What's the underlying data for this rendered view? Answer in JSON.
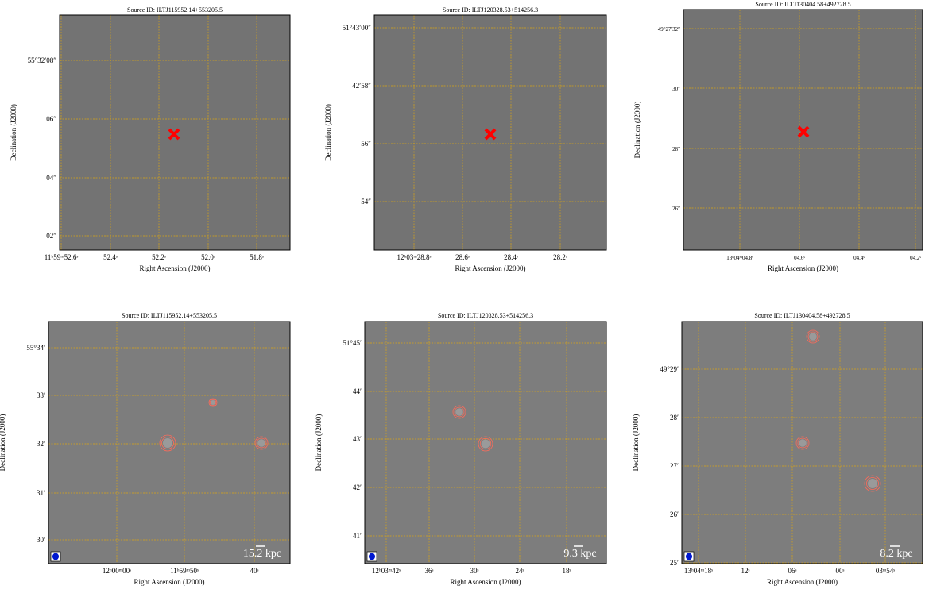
{
  "panels": [
    {
      "title": "Source ID: ILTJ115952.14+553205.5",
      "xlabel": "Right Ascension (J2000)",
      "ylabel": "Declination (J2000)",
      "xticks": [
        "11ʰ59ᵐ52.6ˢ",
        "52.4ˢ",
        "52.2ˢ",
        "52.0ˢ",
        "51.8ˢ"
      ],
      "yticks": [
        "55°32′08″",
        "06″",
        "04″",
        "02″"
      ]
    },
    {
      "title": "Source ID: ILTJ120328.53+514256.3",
      "xlabel": "Right Ascension (J2000)",
      "ylabel": "Declination (J2000)",
      "xticks": [
        "12ʰ03ᵐ28.8ˢ",
        "28.6ˢ",
        "28.4ˢ",
        "28.2ˢ"
      ],
      "yticks": [
        "51°43′00″",
        "42′58″",
        "56″",
        "54″"
      ]
    },
    {
      "title": "Source ID: ILTJ130404.58+492728.5",
      "xlabel": "Right Ascension (J2000)",
      "ylabel": "Declination (J2000)",
      "xticks": [
        "13ʰ04ᵐ04.8ˢ",
        "04.6ˢ",
        "04.4ˢ",
        "04.2ˢ"
      ],
      "yticks": [
        "49°27′32″",
        "30″",
        "28″",
        "26″"
      ]
    },
    {
      "title": "Source ID: ILTJ115952.14+553205.5",
      "xlabel": "Right Ascension (J2000)",
      "ylabel": "Declination (J2000)",
      "xticks": [
        "12ʰ00ᵐ00ˢ",
        "11ʰ59ᵐ50ˢ",
        "40ˢ"
      ],
      "yticks": [
        "55°34′",
        "33′",
        "32′",
        "31′",
        "30′"
      ],
      "scalebar": "15.2 kpc"
    },
    {
      "title": "Source ID: ILTJ120328.53+514256.3",
      "xlabel": "Right Ascension (J2000)",
      "ylabel": "Declination (J2000)",
      "xticks": [
        "12ʰ03ᵐ42ˢ",
        "36ˢ",
        "30ˢ",
        "24ˢ",
        "18ˢ"
      ],
      "yticks": [
        "51°45′",
        "44′",
        "43′",
        "42′",
        "41′"
      ],
      "scalebar": "9.3 kpc"
    },
    {
      "title": "Source ID: ILTJ130404.58+492728.5",
      "xlabel": "Right Ascension (J2000)",
      "ylabel": "Declination (J2000)",
      "xticks": [
        "13ʰ04ᵐ18ˢ",
        "12ˢ",
        "06ˢ",
        "00ˢ",
        "03ᵐ54ˢ"
      ],
      "yticks": [
        "49°29′",
        "28′",
        "27′",
        "26′",
        "25′"
      ],
      "scalebar": "8.2 kpc"
    }
  ]
}
